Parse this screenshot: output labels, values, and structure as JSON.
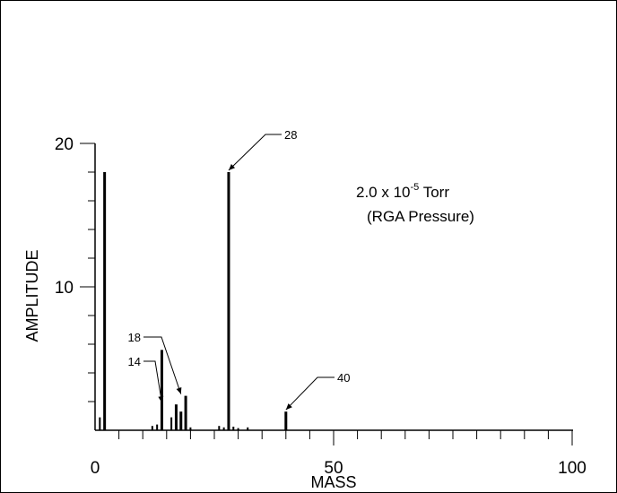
{
  "chart_data": {
    "type": "bar",
    "xlabel": "MASS",
    "ylabel": "AMPLITUDE",
    "xlim": [
      0,
      100
    ],
    "ylim": [
      0,
      20
    ],
    "x_ticks_labeled": [
      "0",
      "50",
      "100"
    ],
    "y_ticks_labeled": [
      "10",
      "20"
    ],
    "minor_tick_step_x": 5,
    "minor_tick_step_y": 2,
    "grid": false,
    "legend": "none",
    "bar_color": "#000000",
    "series": [
      {
        "x": [
          1,
          2,
          12,
          13,
          14,
          16,
          17,
          18,
          19,
          20,
          26,
          27,
          28,
          29,
          30,
          32,
          40
        ],
        "values": [
          0.9,
          18.0,
          0.3,
          0.4,
          5.6,
          0.9,
          1.8,
          1.3,
          2.4,
          0.2,
          0.3,
          0.2,
          18.0,
          0.25,
          0.15,
          0.2,
          1.3
        ]
      }
    ],
    "annotations": [
      {
        "text": "28",
        "x": 28,
        "y": 18.0
      },
      {
        "text": "18",
        "x": 18,
        "y": 2.4
      },
      {
        "text": "14",
        "x": 14,
        "y": 1.8
      },
      {
        "text": "40",
        "x": 40,
        "y": 1.3
      }
    ],
    "note": {
      "line1_prefix": "2.0 x 10",
      "line1_exp": "-5",
      "line1_suffix": " Torr",
      "line2": "(RGA Pressure)"
    }
  }
}
